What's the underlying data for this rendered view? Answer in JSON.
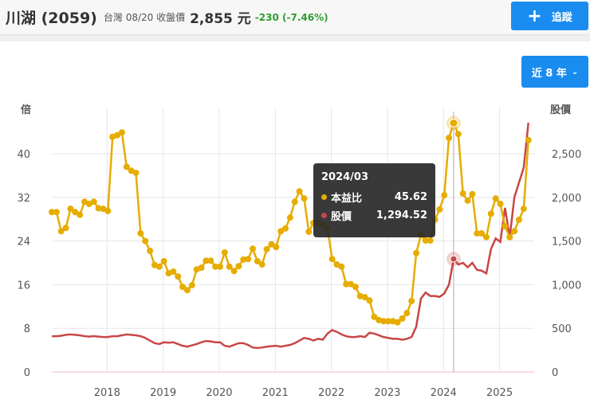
{
  "header": {
    "name": "川湖 (2059)",
    "market_date": "台灣 08/20 收盤價",
    "price": "2,855 元",
    "change": "-230 (-7.46%)",
    "follow_label": "追蹤",
    "range_label": "近 8 年"
  },
  "colors": {
    "pe": "#e6ac00",
    "price": "#c94646",
    "accent": "#1a8cf0",
    "change": "#2e9e2e"
  },
  "tooltip": {
    "date": "2024/03",
    "pe_label": "本益比",
    "pe_value": "45.62",
    "price_label": "股價",
    "price_value": "1,294.52"
  },
  "chart_data": {
    "type": "line",
    "left_axis_label": "倍",
    "right_axis_label": "股價",
    "left_ylim": [
      0,
      45
    ],
    "right_ylim": [
      0,
      2800
    ],
    "left_ticks": [
      "0",
      "8",
      "16",
      "24",
      "32",
      "40"
    ],
    "right_ticks": [
      "0",
      "500",
      "1,000",
      "1,500",
      "2,000",
      "2,500"
    ],
    "x_ticks": [
      "2018",
      "2019",
      "2020",
      "2021",
      "2022",
      "2023",
      "2024",
      "2025"
    ],
    "x_start": "2017/01",
    "x_end": "2025/07",
    "grid": true,
    "series": [
      {
        "name": "本益比",
        "axis": "left",
        "values": [
          29.3,
          29.3,
          25.8,
          26.4,
          29.9,
          29.3,
          28.8,
          31.2,
          30.8,
          31.2,
          30.0,
          29.9,
          29.5,
          43.1,
          43.4,
          43.9,
          37.6,
          36.9,
          36.5,
          25.4,
          24.0,
          22.2,
          19.6,
          19.3,
          20.3,
          18.1,
          18.4,
          17.5,
          15.6,
          15.0,
          15.9,
          18.8,
          19.1,
          20.4,
          20.4,
          19.3,
          19.3,
          21.9,
          19.3,
          18.5,
          19.4,
          20.6,
          20.7,
          22.6,
          20.3,
          19.7,
          22.5,
          23.4,
          22.9,
          25.8,
          26.3,
          28.3,
          31.2,
          33.1,
          31.8,
          25.7,
          27.3,
          27.3,
          27.0,
          26.3,
          20.7,
          19.7,
          19.3,
          16.1,
          16.1,
          15.6,
          13.9,
          13.7,
          13.1,
          10.1,
          9.5,
          9.3,
          9.3,
          9.3,
          9.1,
          9.8,
          10.8,
          13.0,
          21.8,
          25.1,
          24.1,
          24.1,
          27.9,
          29.8,
          32.4,
          42.9,
          45.62,
          43.6,
          32.7,
          31.4,
          32.6,
          25.4,
          25.4,
          24.7,
          29.0,
          31.8,
          30.8,
          26.7,
          24.7,
          25.8,
          27.9,
          29.9,
          42.5
        ]
      },
      {
        "name": "股價",
        "axis": "right",
        "values": [
          410,
          410,
          415,
          425,
          430,
          425,
          420,
          410,
          405,
          410,
          405,
          400,
          400,
          410,
          410,
          420,
          430,
          425,
          420,
          410,
          390,
          360,
          330,
          320,
          340,
          335,
          340,
          320,
          300,
          290,
          305,
          320,
          340,
          355,
          350,
          340,
          340,
          300,
          290,
          310,
          330,
          330,
          310,
          280,
          275,
          280,
          290,
          295,
          300,
          290,
          300,
          310,
          330,
          360,
          390,
          380,
          360,
          380,
          370,
          440,
          480,
          460,
          430,
          410,
          400,
          400,
          410,
          400,
          450,
          440,
          420,
          400,
          390,
          380,
          380,
          370,
          380,
          400,
          520,
          840,
          910,
          870,
          870,
          860,
          900,
          1000,
          1294.52,
          1230,
          1250,
          1200,
          1250,
          1170,
          1160,
          1130,
          1410,
          1530,
          1490,
          1880,
          1540,
          2000,
          2170,
          2340,
          2855
        ]
      }
    ],
    "highlight_index": 86
  }
}
